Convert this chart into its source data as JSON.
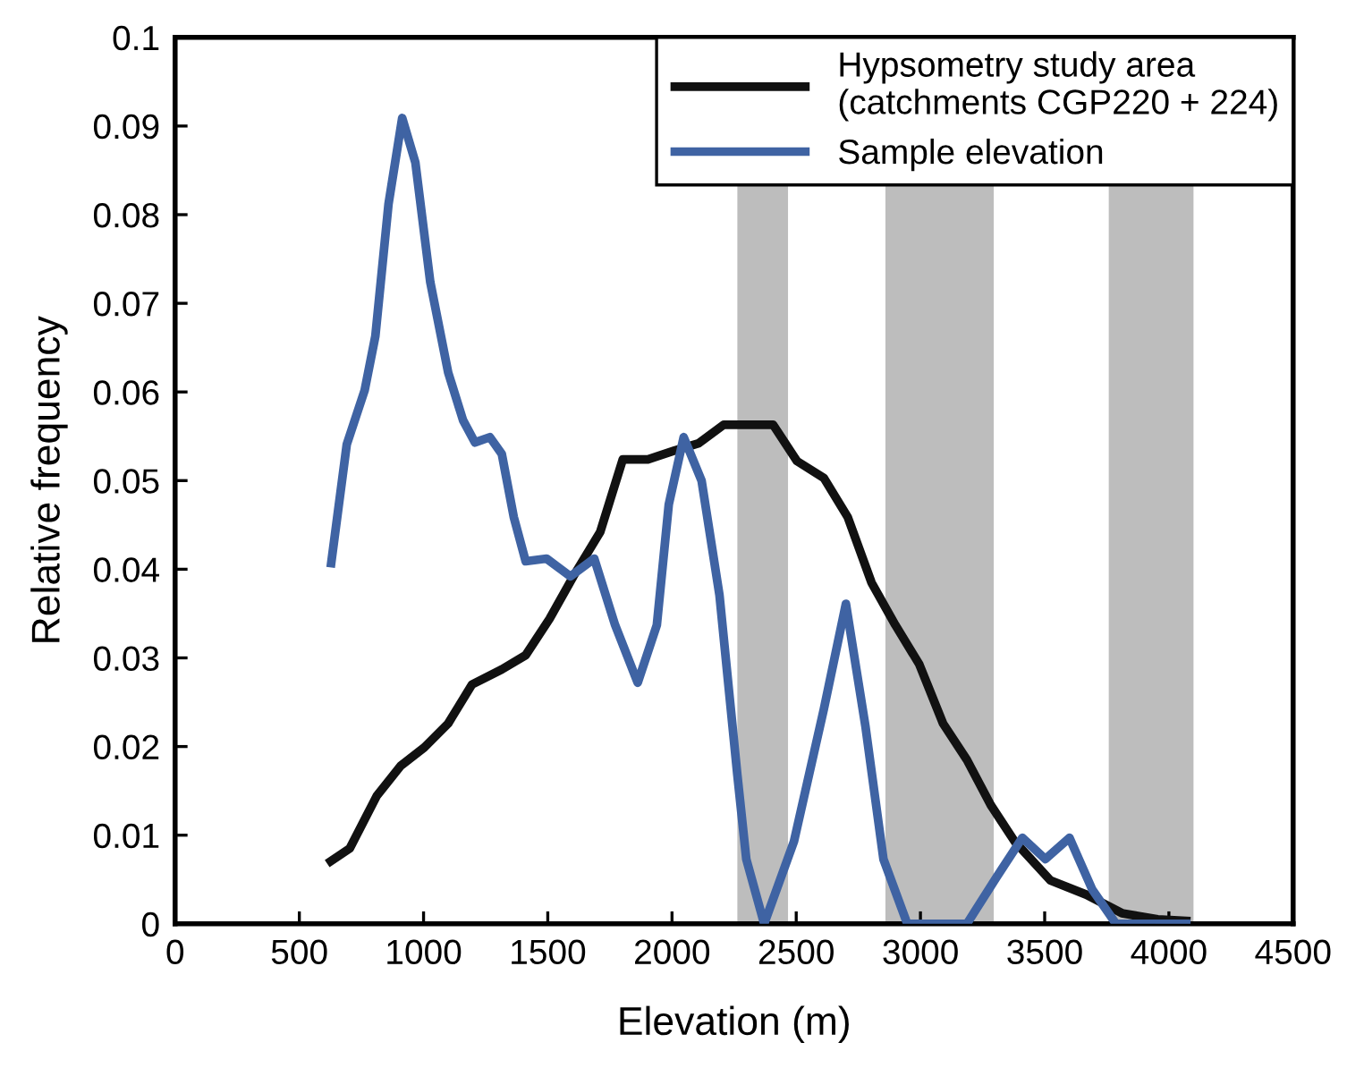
{
  "chart_data": {
    "type": "line",
    "xlabel": "Elevation (m)",
    "ylabel": "Relative frequency",
    "xlim": [
      0,
      4500
    ],
    "xticks": [
      0,
      500,
      1000,
      1500,
      2000,
      2500,
      3000,
      3500,
      4000,
      4500
    ],
    "ylim": [
      0,
      0.1
    ],
    "yticks": [
      0,
      0.01,
      0.02,
      0.03,
      0.04,
      0.05,
      0.06,
      0.07,
      0.08,
      0.09,
      0.1
    ],
    "grid": false,
    "legend": "top right",
    "marker": "none",
    "line_style": "solid",
    "bands": [
      {
        "axis": "x",
        "from": 2263,
        "to": 2467,
        "color": "#bdbdbd"
      },
      {
        "axis": "x",
        "from": 2859,
        "to": 3295,
        "color": "#bdbdbd"
      },
      {
        "axis": "x",
        "from": 3758,
        "to": 4099,
        "color": "#bdbdbd"
      }
    ],
    "series": [
      {
        "name": "Hypsometry study area\n(catchments CGP220 + 224)",
        "color": "#111111",
        "x": [
          612,
          703,
          811,
          907,
          1003,
          1099,
          1195,
          1315,
          1411,
          1507,
          1603,
          1711,
          1802,
          1903,
          2011,
          2107,
          2208,
          2407,
          2503,
          2611,
          2707,
          2803,
          2899,
          2995,
          3091,
          3187,
          3283,
          3379,
          3523,
          3667,
          3811,
          3955,
          4087
        ],
        "values": [
          0.0068,
          0.0085,
          0.0144,
          0.0178,
          0.0199,
          0.0226,
          0.027,
          0.0287,
          0.0303,
          0.0344,
          0.0392,
          0.0442,
          0.0524,
          0.0524,
          0.0534,
          0.0542,
          0.0563,
          0.0563,
          0.0522,
          0.0503,
          0.0459,
          0.0385,
          0.0337,
          0.0293,
          0.0226,
          0.0185,
          0.0134,
          0.0093,
          0.0049,
          0.0033,
          0.0012,
          0.0005,
          0.0003
        ]
      },
      {
        "name": "Sample elevation",
        "color": "#3f63a3",
        "x": [
          626,
          691,
          763,
          806,
          859,
          914,
          967,
          1027,
          1099,
          1159,
          1207,
          1267,
          1315,
          1363,
          1411,
          1495,
          1591,
          1687,
          1771,
          1862,
          1939,
          1987,
          2047,
          2119,
          2191,
          2263,
          2299,
          2371,
          2491,
          2611,
          2700,
          2779,
          2851,
          2947,
          3187,
          3307,
          3410,
          3503,
          3600,
          3691,
          3787,
          4087
        ],
        "values": [
          0.0402,
          0.0541,
          0.0602,
          0.0663,
          0.0812,
          0.0909,
          0.0859,
          0.0724,
          0.0622,
          0.0568,
          0.0543,
          0.0549,
          0.053,
          0.0459,
          0.0409,
          0.0412,
          0.0392,
          0.0412,
          0.0337,
          0.0272,
          0.0337,
          0.0473,
          0.0549,
          0.05,
          0.0371,
          0.0168,
          0.0073,
          0,
          0.0093,
          0.0242,
          0.0361,
          0.0222,
          0.0073,
          0,
          0,
          0.0053,
          0.0097,
          0.0073,
          0.0097,
          0.0039,
          0,
          0
        ]
      }
    ]
  }
}
